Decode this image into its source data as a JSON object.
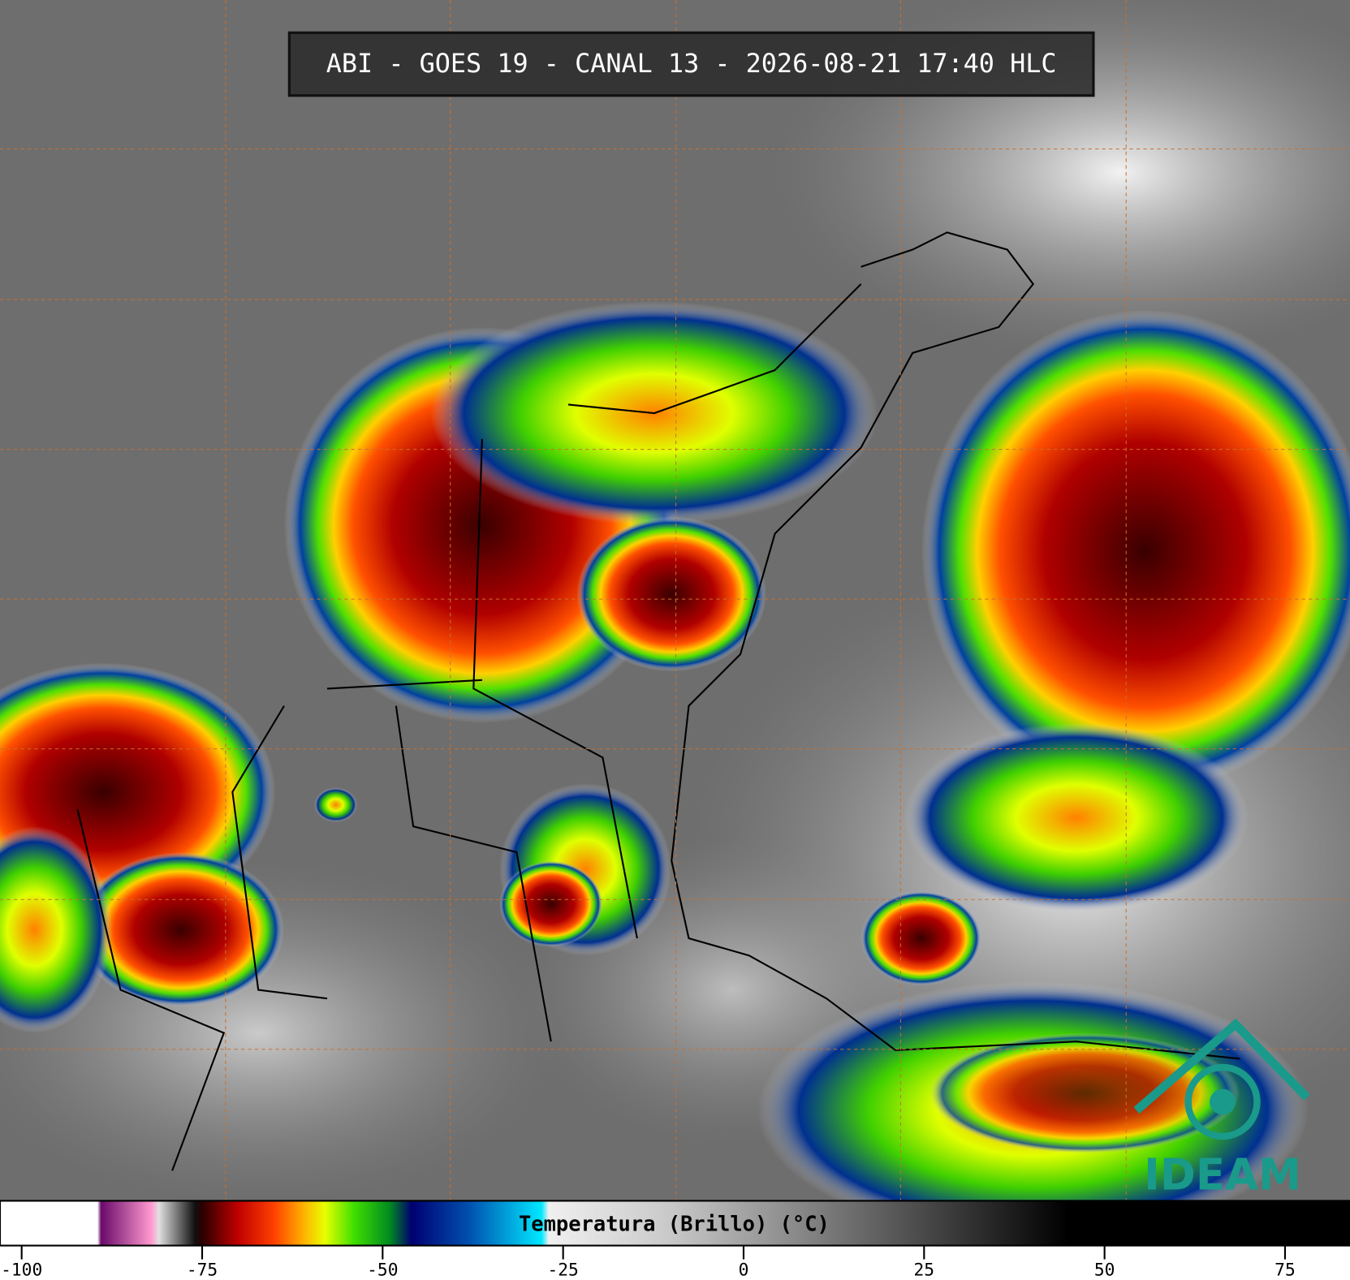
{
  "header": {
    "title": "ABI - GOES 19 - CANAL 13 - 2026-08-21 17:40 HLC"
  },
  "logo": {
    "text": "IDEAM"
  },
  "colorbar": {
    "label": "Temperatura (Brillo) (°C)",
    "xlim": [
      -103,
      84
    ],
    "ticks": [
      -100,
      -75,
      -50,
      -25,
      0,
      25,
      50,
      75
    ],
    "stops": [
      {
        "value": -103,
        "color": "#ffffff"
      },
      {
        "value": -89.5,
        "color": "#ffffff"
      },
      {
        "value": -89,
        "color": "#6a0a6a"
      },
      {
        "value": -82,
        "color": "#ff9ad0"
      },
      {
        "value": -81,
        "color": "#e0e0e0"
      },
      {
        "value": -76,
        "color": "#111111"
      },
      {
        "value": -75,
        "color": "#2a0000"
      },
      {
        "value": -70,
        "color": "#c00000"
      },
      {
        "value": -65,
        "color": "#ff4000"
      },
      {
        "value": -61,
        "color": "#ffb000"
      },
      {
        "value": -58,
        "color": "#e8ff00"
      },
      {
        "value": -54,
        "color": "#40e000"
      },
      {
        "value": -49,
        "color": "#008a20"
      },
      {
        "value": -46,
        "color": "#000070"
      },
      {
        "value": -38,
        "color": "#0050b0"
      },
      {
        "value": -28,
        "color": "#00e8ff"
      },
      {
        "value": -27,
        "color": "#f0f0f0"
      },
      {
        "value": -10,
        "color": "#c8c8c8"
      },
      {
        "value": 45,
        "color": "#000000"
      },
      {
        "value": 84,
        "color": "#000000"
      }
    ]
  }
}
